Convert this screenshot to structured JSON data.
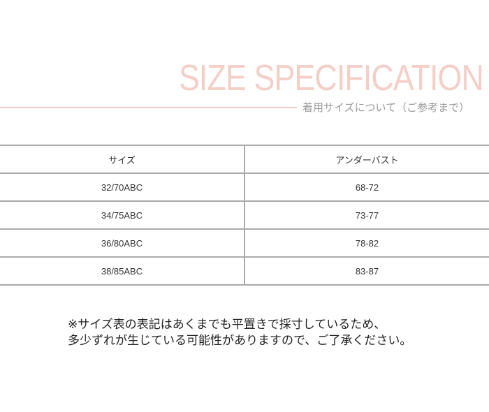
{
  "header": {
    "title": "SIZE SPECIFICATION",
    "subtitle": "着用サイズについて（ご参考まで）",
    "accent_color": "#f3cfc7"
  },
  "table": {
    "columns": [
      "サイズ",
      "アンダーバスト"
    ],
    "rows": [
      [
        "32/70ABC",
        "68-72"
      ],
      [
        "34/75ABC",
        "73-77"
      ],
      [
        "36/80ABC",
        "78-82"
      ],
      [
        "38/85ABC",
        "83-87"
      ]
    ]
  },
  "note": {
    "line1": "※サイズ表の表記はあくまでも平置きで採寸しているため、",
    "line2": "多少ずれが生じている可能性がありますので、ご了承ください。"
  }
}
